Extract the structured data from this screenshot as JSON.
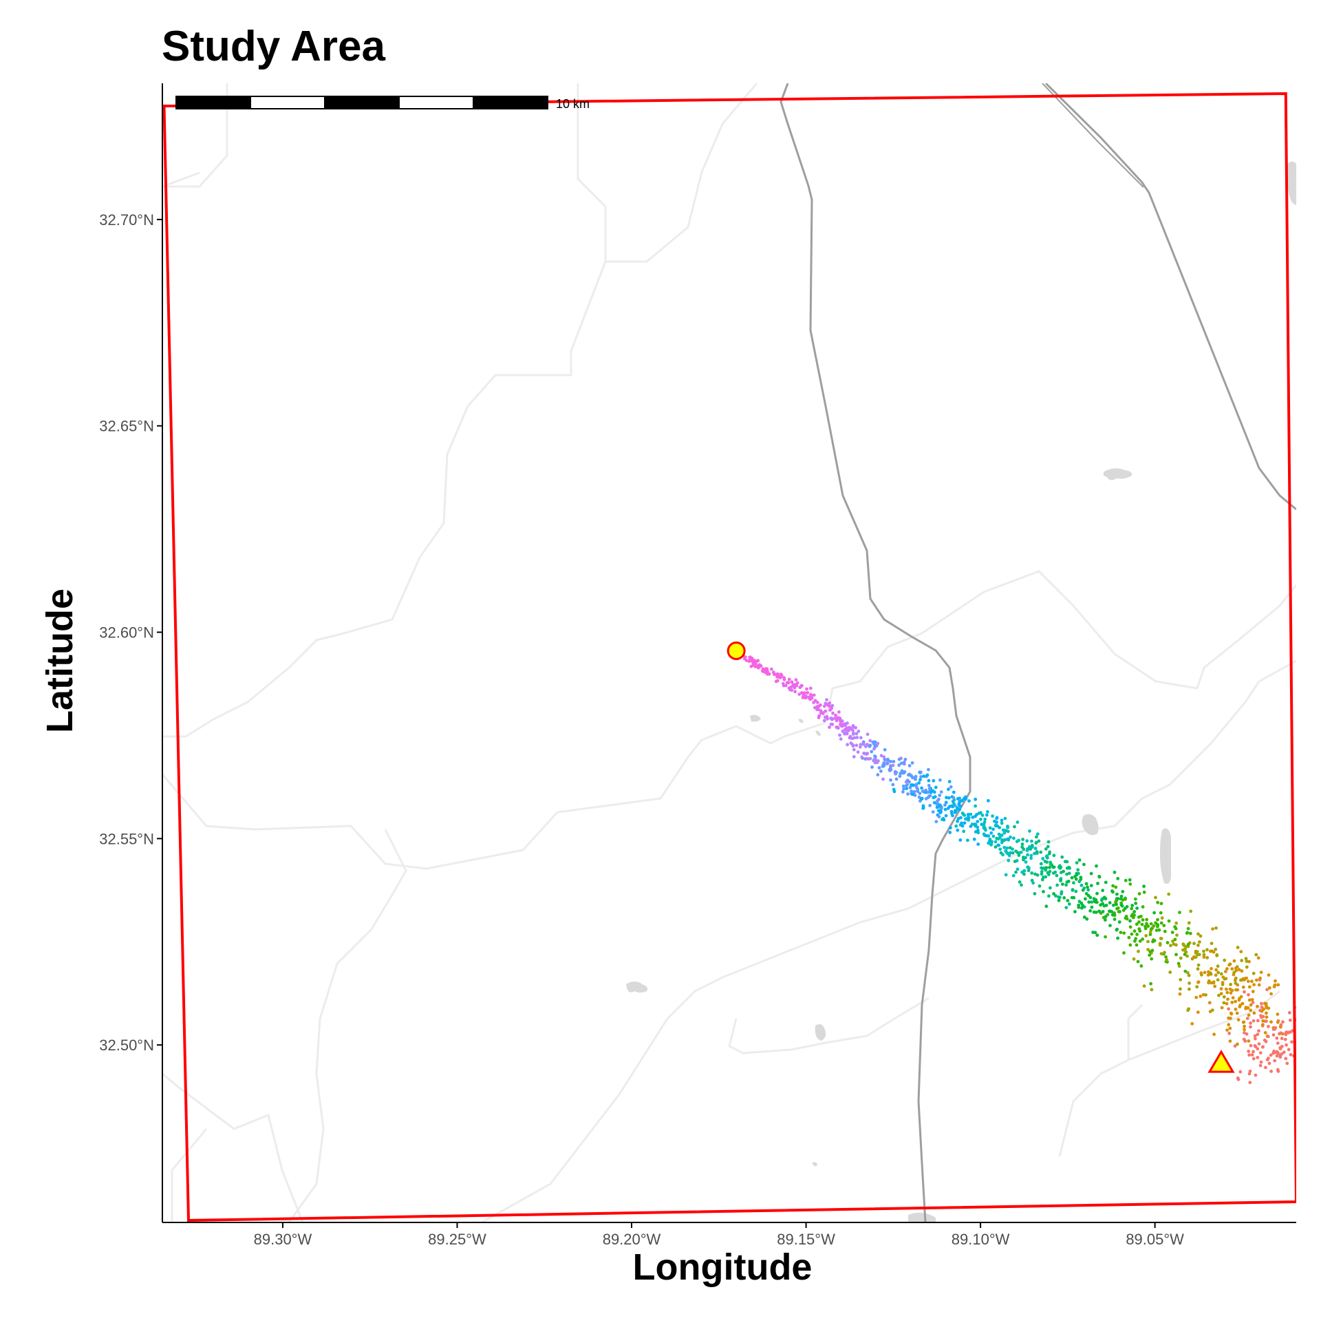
{
  "title": "Study Area",
  "axes": {
    "xlabel": "Longitude",
    "ylabel": "Latitude",
    "x_ticks": [
      {
        "value": -89.3,
        "label": "89.30°W"
      },
      {
        "value": -89.25,
        "label": "89.25°W"
      },
      {
        "value": -89.2,
        "label": "89.20°W"
      },
      {
        "value": -89.15,
        "label": "89.15°W"
      },
      {
        "value": -89.1,
        "label": "89.10°W"
      },
      {
        "value": -89.05,
        "label": "89.05°W"
      }
    ],
    "y_ticks": [
      {
        "value": 32.7,
        "label": "32.70°N"
      },
      {
        "value": 32.65,
        "label": "32.65°N"
      },
      {
        "value": 32.6,
        "label": "32.60°N"
      },
      {
        "value": 32.55,
        "label": "32.55°N"
      },
      {
        "value": 32.5,
        "label": "32.50°N"
      }
    ],
    "xlim": [
      -89.3345,
      -89.0095
    ],
    "ylim": [
      32.457,
      32.733
    ]
  },
  "scale_bar": {
    "label": "10 km",
    "segments": 5
  },
  "markers": {
    "start": {
      "shape": "circle",
      "lon": -89.17,
      "lat": 32.5955,
      "fill": "#ffff00",
      "stroke": "#ff0000"
    },
    "end": {
      "shape": "triangle",
      "lon": -89.031,
      "lat": 32.4955,
      "fill": "#ffff00",
      "stroke": "#ff0000"
    }
  },
  "study_area_border": {
    "color": "#ff0000",
    "corners": [
      [
        -89.334,
        32.7275
      ],
      [
        -89.0125,
        32.7305
      ],
      [
        -89.0095,
        32.462
      ],
      [
        -89.327,
        32.4575
      ]
    ]
  },
  "plume": {
    "description_colors": [
      "#f564e3",
      "#b983ff",
      "#00b0f6",
      "#00bfc4",
      "#00bf7d",
      "#39b600",
      "#a3a500",
      "#e76bf3",
      "#f8766d"
    ],
    "gradient": [
      "#f564e3",
      "#e76bf3",
      "#b983ff",
      "#619cff",
      "#00b0f6",
      "#00bfc4",
      "#00bf7d",
      "#00ba38",
      "#39b600",
      "#a3a500",
      "#d89000",
      "#f8766d"
    ]
  },
  "chart_data": {
    "type": "scatter",
    "title": "Study Area",
    "xlabel": "Longitude",
    "ylabel": "Latitude",
    "xlim": [
      -89.3345,
      -89.0095
    ],
    "ylim": [
      32.457,
      32.733
    ],
    "grid": false,
    "series": [
      {
        "marker": "circle",
        "x": [
          -89.17
        ],
        "y": [
          32.5955
        ]
      },
      {
        "marker": "triangle",
        "x": [
          -89.031
        ],
        "y": [
          32.4955
        ]
      }
    ],
    "point_cloud": {
      "description": "dispersion of points from the circle marker toward the southeast, colored by hue gradient from pink to orange",
      "path": [
        [
          -89.168,
          32.594
        ],
        [
          -89.15,
          32.585
        ],
        [
          -89.13,
          32.57
        ],
        [
          -89.11,
          32.558
        ],
        [
          -89.09,
          32.548
        ],
        [
          -89.07,
          32.537
        ],
        [
          -89.05,
          32.527
        ],
        [
          -89.035,
          32.518
        ],
        [
          -89.02,
          32.508
        ],
        [
          -89.012,
          32.495
        ]
      ],
      "approx_count": 1300
    }
  }
}
